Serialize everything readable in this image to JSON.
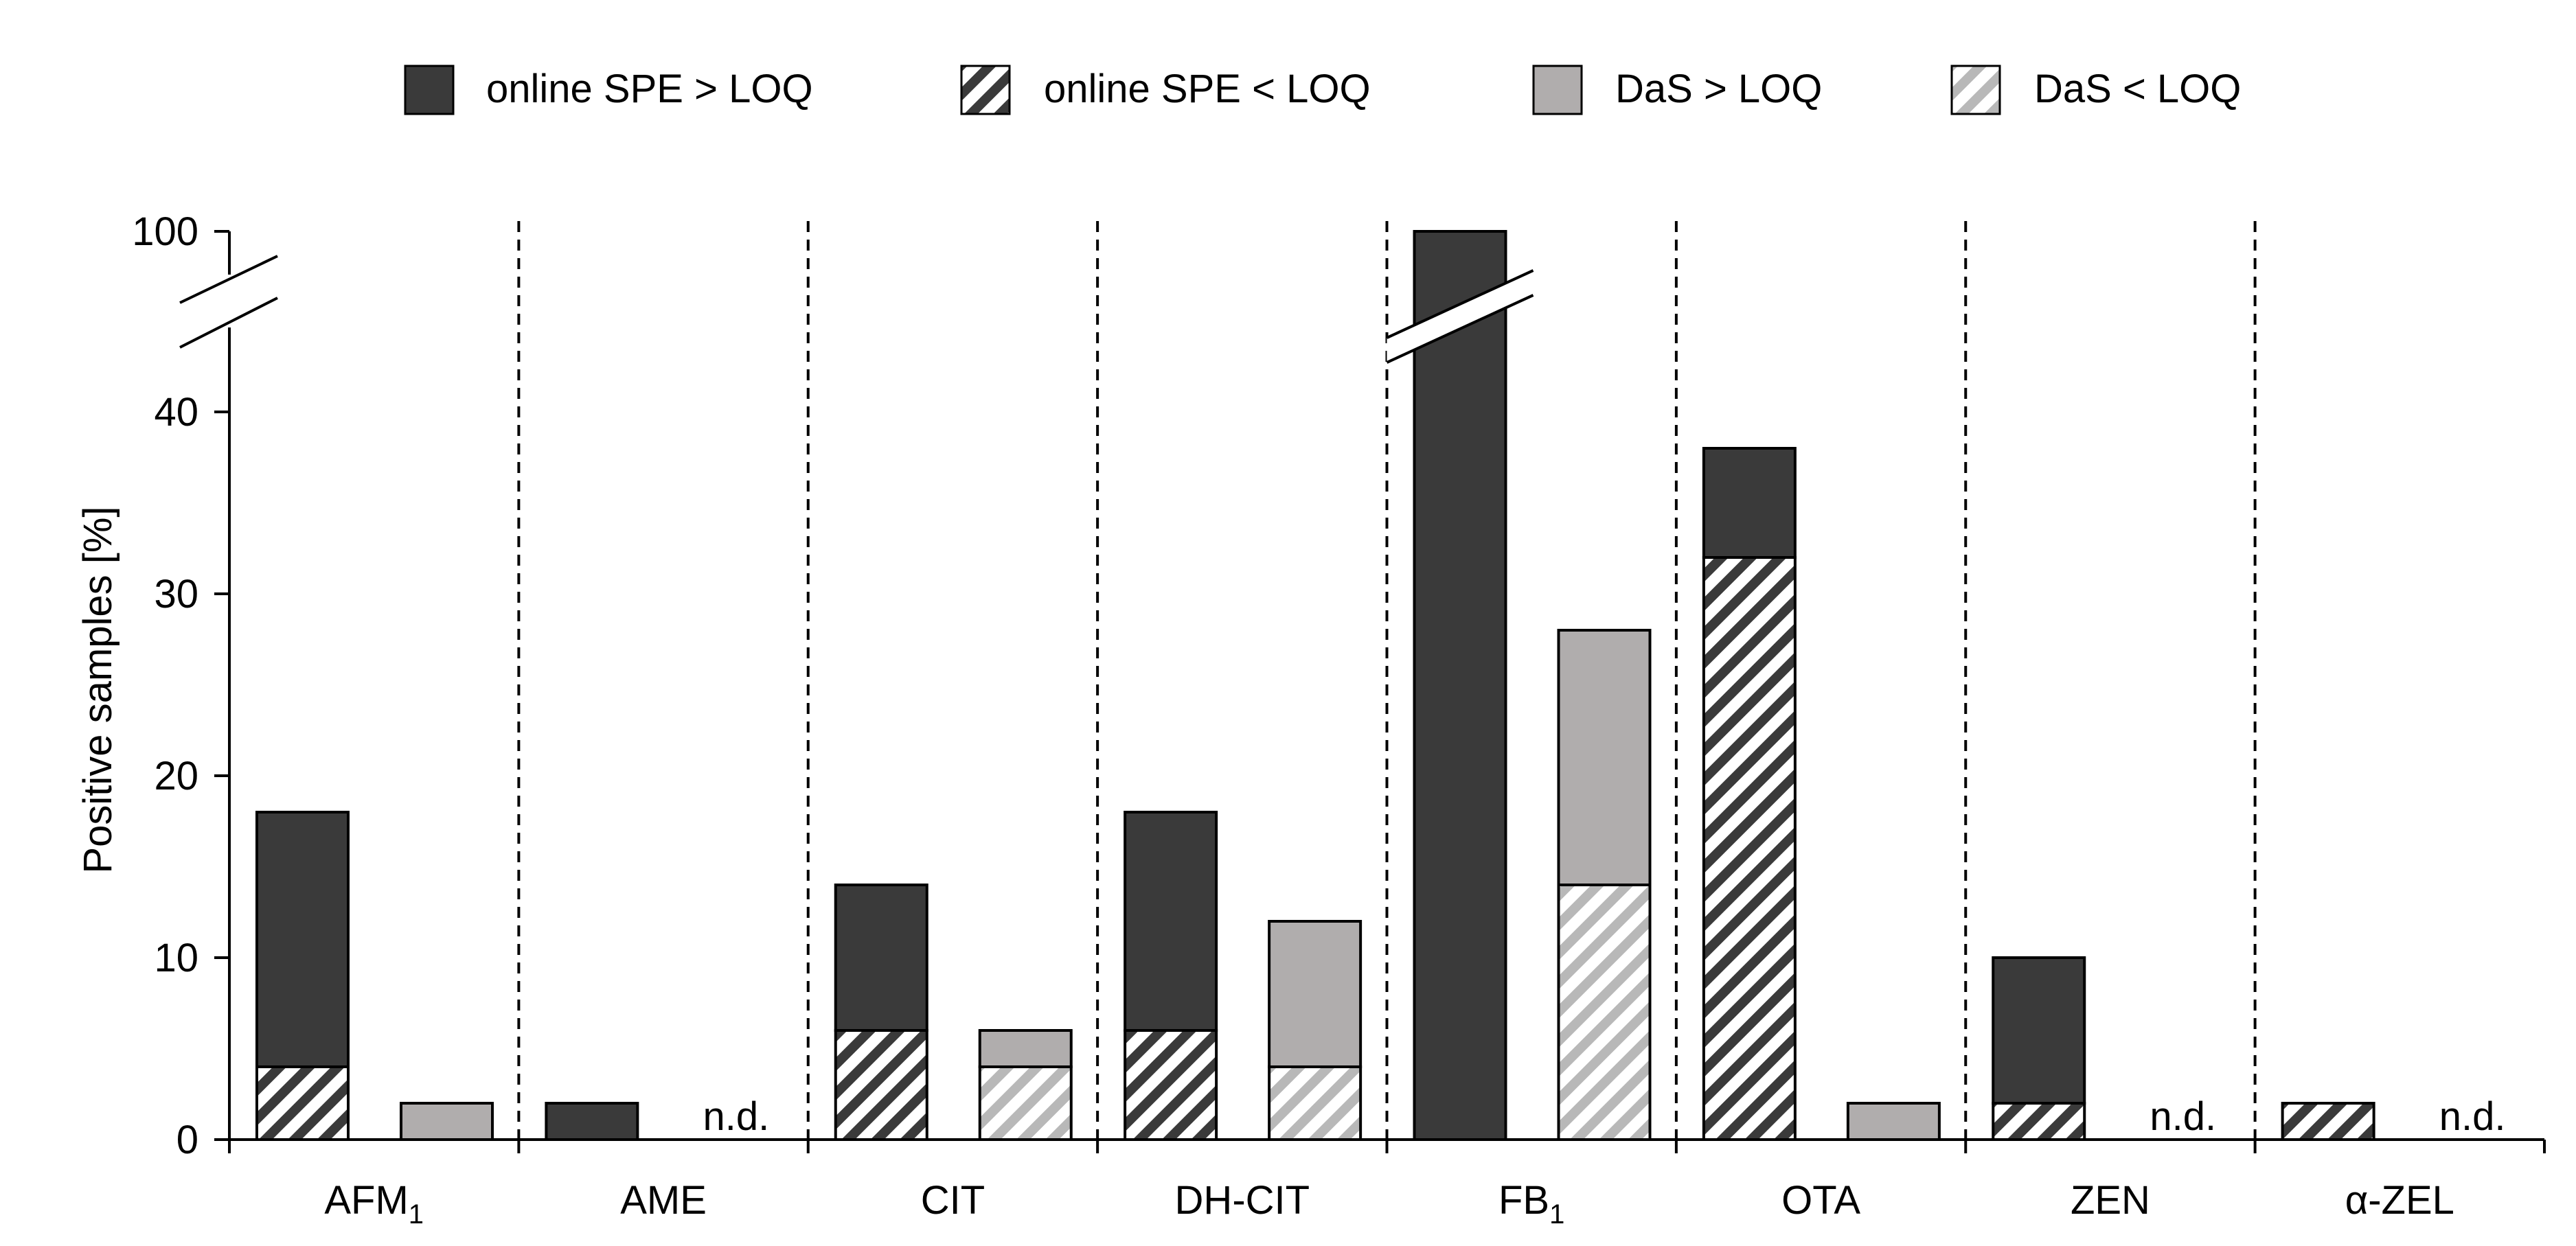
{
  "chart_data": {
    "type": "bar",
    "stacked": true,
    "ylabel": "Positive samples [%]",
    "y_break": {
      "lower_max": 45,
      "upper_value": 100
    },
    "yticks": [
      0,
      10,
      20,
      30,
      40,
      100
    ],
    "categories": [
      {
        "id": "afm1",
        "label": "AFM",
        "subscript": "1"
      },
      {
        "id": "ame",
        "label": "AME",
        "subscript": ""
      },
      {
        "id": "cit",
        "label": "CIT",
        "subscript": ""
      },
      {
        "id": "dhcit",
        "label": "DH-CIT",
        "subscript": ""
      },
      {
        "id": "fb1",
        "label": "FB",
        "subscript": "1"
      },
      {
        "id": "ota",
        "label": "OTA",
        "subscript": ""
      },
      {
        "id": "zen",
        "label": "ZEN",
        "subscript": ""
      },
      {
        "id": "azel",
        "label": "α-ZEL",
        "subscript": ""
      }
    ],
    "legend": [
      {
        "key": "spe_above",
        "label": "online SPE > LOQ"
      },
      {
        "key": "spe_below",
        "label": "online SPE < LOQ"
      },
      {
        "key": "das_above",
        "label": "DaS > LOQ"
      },
      {
        "key": "das_below",
        "label": "DaS < LOQ"
      }
    ],
    "series": [
      {
        "method": "online SPE",
        "total": [
          18,
          2,
          14,
          18,
          100,
          38,
          10,
          2
        ],
        "below_loq": [
          4,
          0,
          6,
          6,
          0,
          32,
          2,
          2
        ]
      },
      {
        "method": "DaS",
        "total": [
          2,
          0,
          6,
          12,
          28,
          2,
          0,
          0
        ],
        "below_loq": [
          0,
          0,
          4,
          4,
          14,
          0,
          0,
          0
        ],
        "not_detected": [
          false,
          true,
          false,
          false,
          false,
          false,
          true,
          true
        ]
      }
    ],
    "nd_label": "n.d.",
    "colors": {
      "spe": "#3a3a3a",
      "das": "#b0adad",
      "spe_hatch": "#3a3a3a",
      "das_hatch": "#b8b8b8",
      "outline": "#000000"
    }
  }
}
